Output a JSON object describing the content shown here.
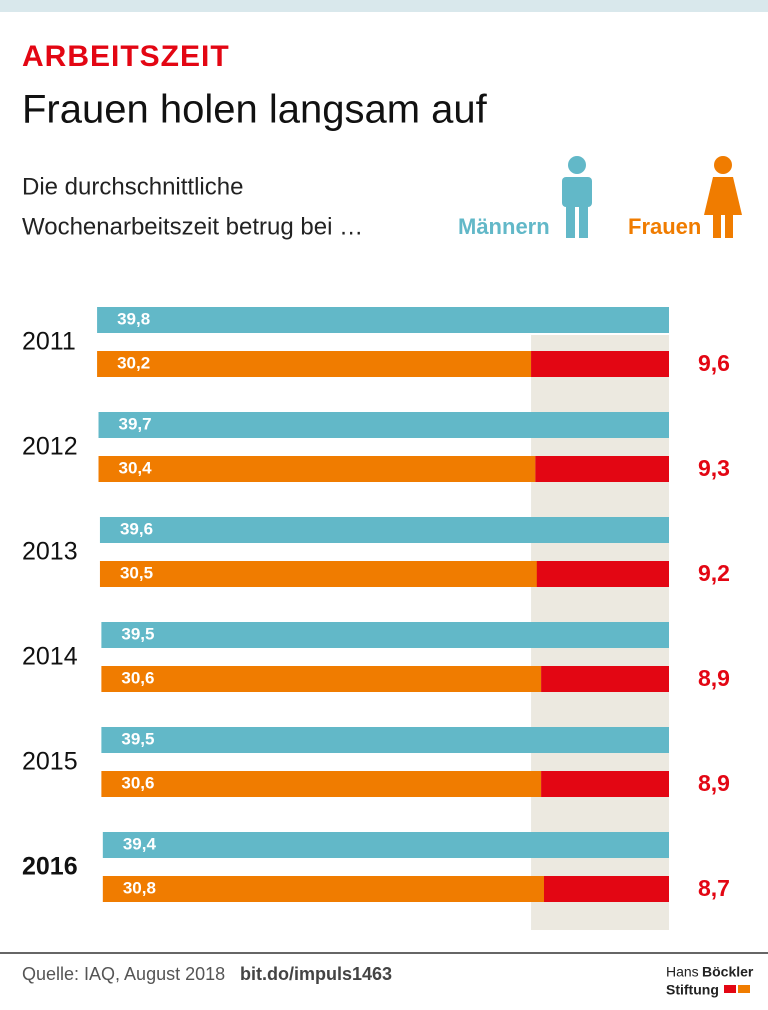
{
  "header": {
    "kicker": "ARBEITSZEIT",
    "title": "Frauen holen langsam auf",
    "subtitle": [
      "Die durchschnittliche",
      "Wochenarbeitszeit betrug bei …"
    ]
  },
  "chart_data": {
    "type": "bar",
    "categories": [
      "2011",
      "2012",
      "2013",
      "2014",
      "2015",
      "2016"
    ],
    "series": [
      {
        "name": "Männern",
        "color": "#62b8c8",
        "values": [
          39.8,
          39.7,
          39.6,
          39.5,
          39.5,
          39.4
        ],
        "value_labels": [
          "39,8",
          "39,7",
          "39,6",
          "39,5",
          "39,5",
          "39,4"
        ]
      },
      {
        "name": "Frauen",
        "color": "#f07c00",
        "values": [
          30.2,
          30.4,
          30.5,
          30.6,
          30.6,
          30.8
        ],
        "value_labels": [
          "30,2",
          "30,4",
          "30,5",
          "30,6",
          "30,6",
          "30,8"
        ]
      }
    ],
    "gap": {
      "color": "#e30613",
      "values": [
        9.6,
        9.3,
        9.2,
        8.9,
        8.9,
        8.7
      ],
      "value_labels": [
        "9,6",
        "9,3",
        "9,2",
        "8,9",
        "8,9",
        "8,7"
      ]
    }
  },
  "footer": {
    "source": "Quelle: IAQ, August 2018",
    "link": "bit.do/impuls1463",
    "logo": [
      "Hans",
      "Böckler",
      "Stiftung"
    ]
  }
}
